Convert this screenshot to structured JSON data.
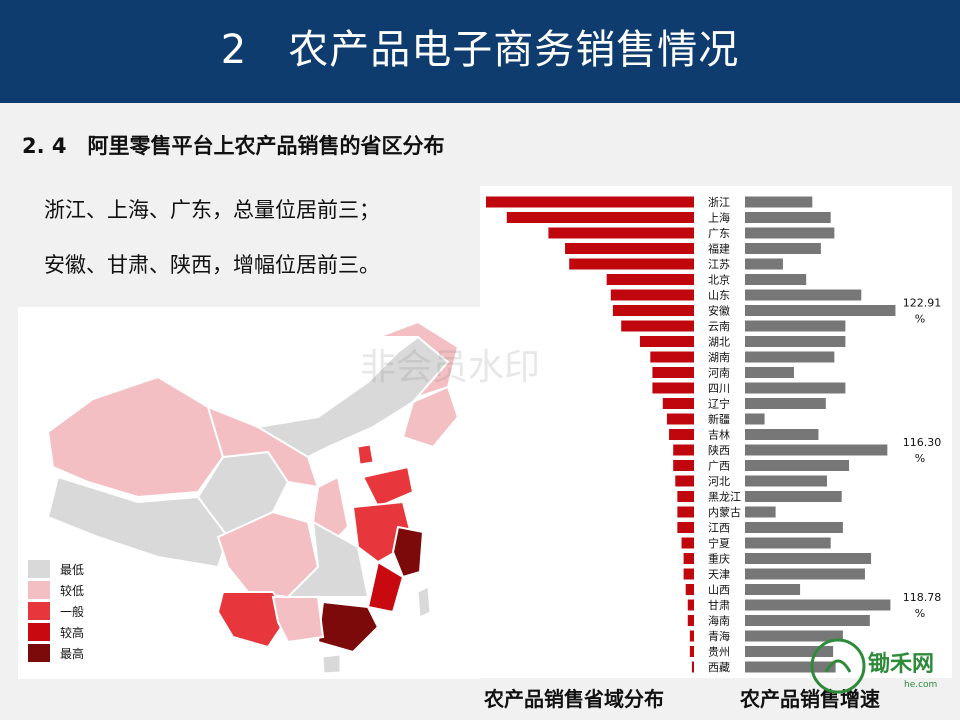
{
  "header": {
    "title": "2　农产品电子商务销售情况"
  },
  "section": {
    "title": "2. 4　阿里零售平台上农产品销售的省区分布"
  },
  "bullets": [
    "浙江、上海、广东，总量位居前三；",
    "安徽、甘肃、陕西，增幅位居前三。"
  ],
  "map": {
    "watermark": "非会员水印",
    "legend": [
      {
        "label": "最低",
        "color": "#d9d9d9"
      },
      {
        "label": "较低",
        "color": "#f4bfc3"
      },
      {
        "label": "一般",
        "color": "#e8373c"
      },
      {
        "label": "较高",
        "color": "#c8090f"
      },
      {
        "label": "最高",
        "color": "#7c0a0a"
      }
    ]
  },
  "captions": {
    "left": "农产品销售省域分布",
    "right": "农产品销售增速"
  },
  "logo": {
    "text": "锄禾网",
    "sub": "he.com"
  },
  "colors": {
    "header": "#0f3c6e",
    "sales_bar": "#c0070e",
    "growth_bar": "#777777"
  },
  "chart_data": {
    "type": "bar",
    "categories": [
      "浙江",
      "上海",
      "广东",
      "福建",
      "江苏",
      "北京",
      "山东",
      "安徽",
      "云南",
      "湖北",
      "湖南",
      "河南",
      "四川",
      "辽宁",
      "新疆",
      "吉林",
      "陕西",
      "广西",
      "河北",
      "黑龙江",
      "内蒙古",
      "江西",
      "宁夏",
      "重庆",
      "天津",
      "山西",
      "甘肃",
      "海南",
      "青海",
      "贵州",
      "西藏"
    ],
    "series": [
      {
        "values": [
          100,
          90,
          70,
          62,
          60,
          42,
          40,
          39,
          35,
          26,
          21,
          20,
          20,
          15,
          13,
          12,
          10,
          10,
          9,
          8,
          8,
          8,
          6,
          5,
          5,
          4,
          3,
          3,
          2,
          2,
          1
        ]
      },
      {
        "values": [
          55,
          70,
          73,
          62,
          31,
          50,
          95,
          122.91,
          82,
          82,
          73,
          40,
          82,
          66,
          16,
          60,
          116.3,
          85,
          67,
          79,
          25,
          80,
          70,
          103,
          98,
          45,
          118.78,
          102,
          80,
          72,
          74
        ]
      }
    ],
    "annotations": [
      {
        "category": "安徽",
        "value_label": "122.91",
        "unit": "%"
      },
      {
        "category": "陕西",
        "value_label": "116.30",
        "unit": "%"
      },
      {
        "category": "甘肃",
        "value_label": "118.78",
        "unit": "%"
      }
    ]
  }
}
